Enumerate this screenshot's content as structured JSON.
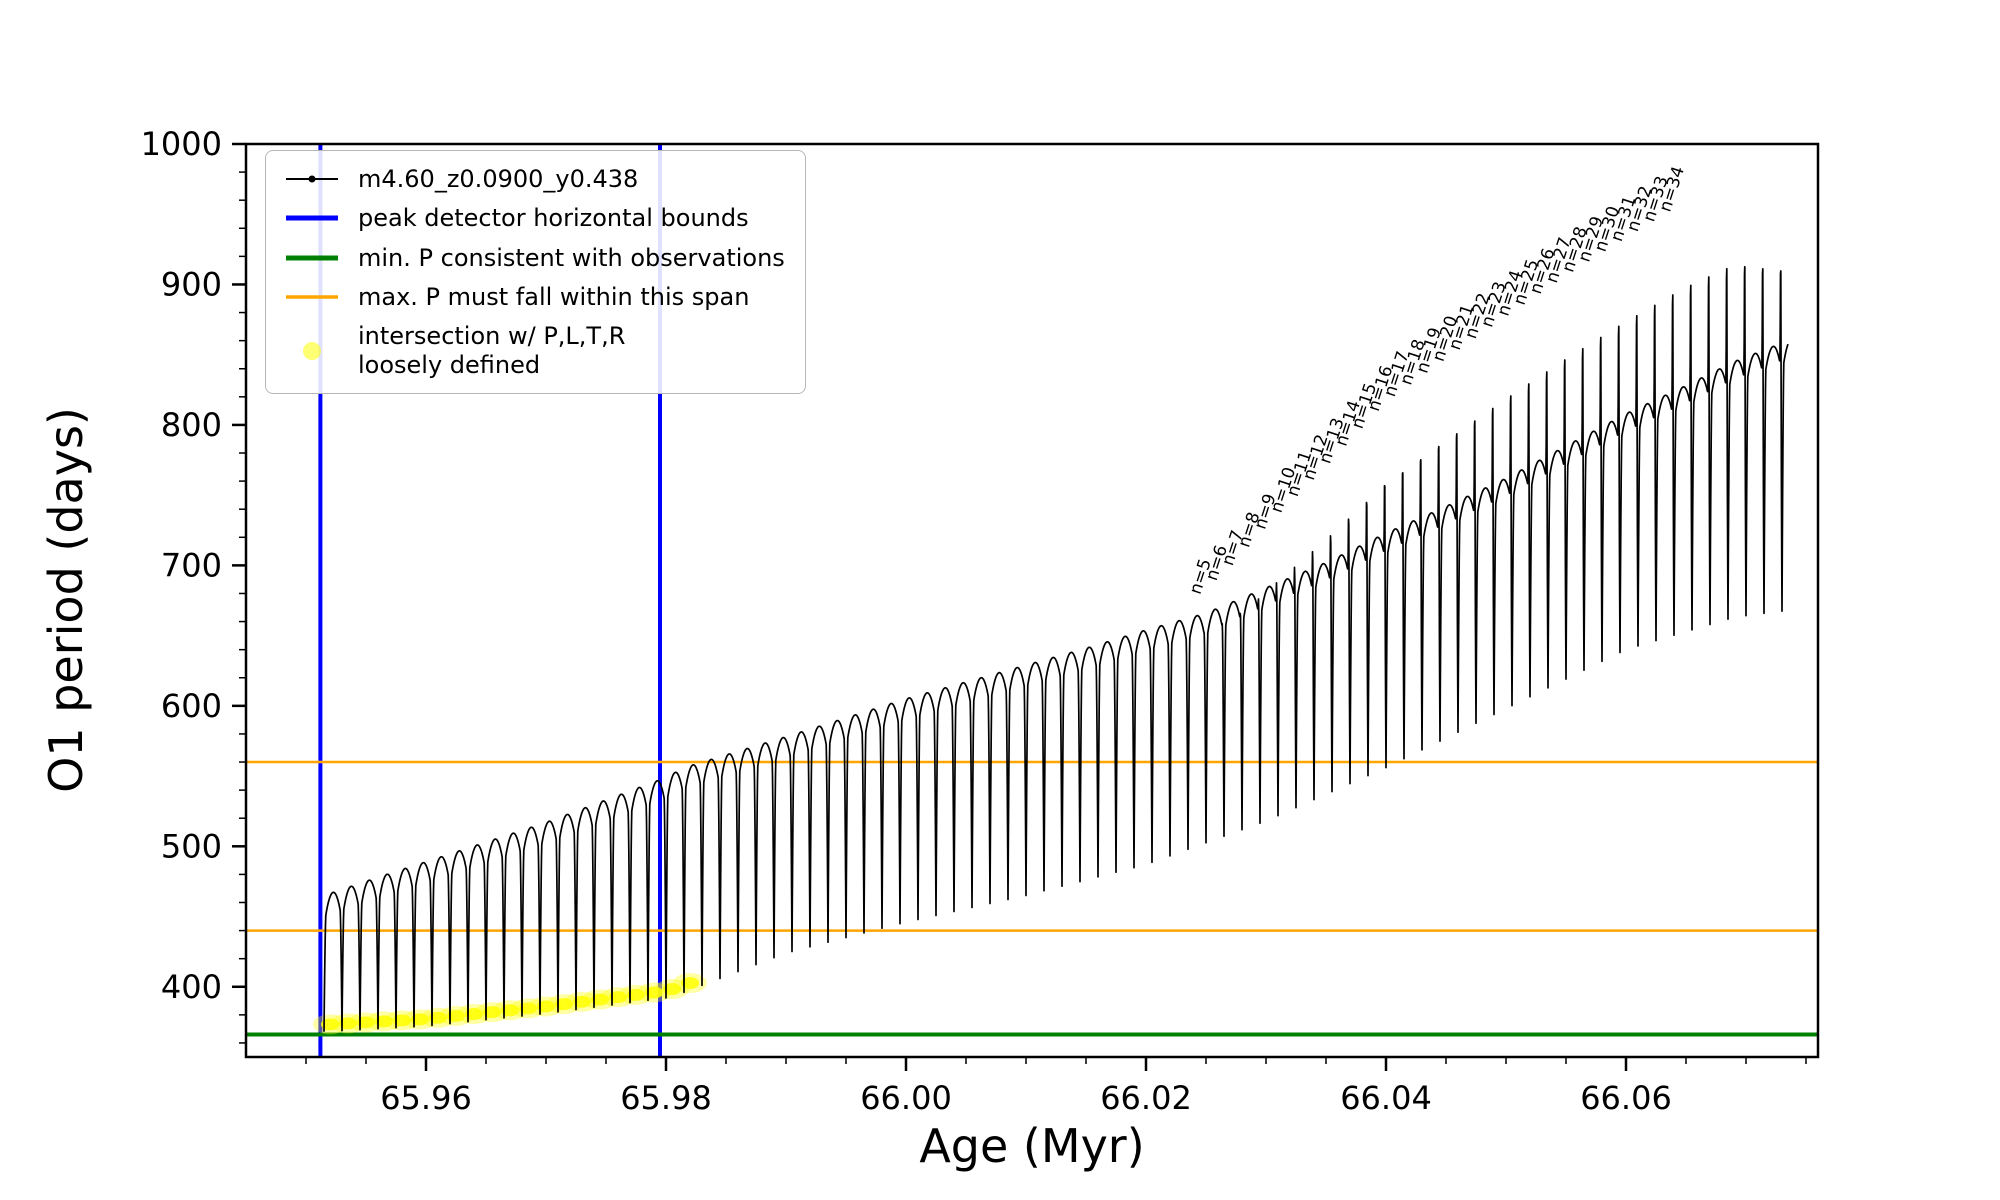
{
  "figure": {
    "background": "#ffffff"
  },
  "chart_data": {
    "type": "line",
    "title": "",
    "xlabel": "Age (Myr)",
    "ylabel": "O1 period (days)",
    "xlim": [
      65.945,
      66.076
    ],
    "ylim": [
      350,
      1000
    ],
    "xticks": [
      65.96,
      65.98,
      66.0,
      66.02,
      66.04,
      66.06
    ],
    "xtick_labels": [
      "65.96",
      "65.98",
      "66.00",
      "66.02",
      "66.04",
      "66.06"
    ],
    "yticks": [
      400,
      500,
      600,
      700,
      800,
      900,
      1000
    ],
    "ytick_labels": [
      "400",
      "500",
      "600",
      "700",
      "800",
      "900",
      "1000"
    ],
    "grid": false,
    "legend_position": "upper left",
    "series": [
      {
        "name": "m4.60_z0.0900_y0.438",
        "color": "#000000",
        "marker": "point",
        "model": {
          "period": 0.0015,
          "t_start": 65.9515,
          "t_end": 66.0735,
          "dome_amp": 26,
          "base_t": [
            65.9515,
            65.956,
            65.96,
            65.965,
            65.97,
            65.975,
            65.98,
            65.9815,
            65.99,
            66.0,
            66.005,
            66.01,
            66.015,
            66.02,
            66.025,
            66.03,
            66.035,
            66.04,
            66.045,
            66.05,
            66.055,
            66.06,
            66.065,
            66.069,
            66.0735
          ],
          "base_p": [
            465,
            478,
            489,
            503,
            517,
            533,
            549,
            556,
            578,
            605,
            617,
            629,
            641,
            654,
            666,
            684,
            702,
            723,
            742,
            762,
            785,
            808,
            828,
            845,
            860
          ],
          "dip_t": [
            65.9515,
            65.96,
            65.97,
            65.98,
            65.9815,
            65.99,
            66.0,
            66.01,
            66.02,
            66.03,
            66.04,
            66.05,
            66.06,
            66.069,
            66.0735
          ],
          "dip_p": [
            368,
            372,
            381,
            392,
            396,
            424,
            446,
            465,
            487,
            518,
            556,
            598,
            640,
            663,
            668
          ],
          "up_t": [
            65.945,
            66.024,
            66.027,
            66.03,
            66.035,
            66.04,
            66.045,
            66.05,
            66.055,
            66.06,
            66.065,
            66.069,
            66.0735
          ],
          "up_a": [
            0,
            0,
            12,
            30,
            55,
            80,
            92,
            102,
            108,
            112,
            118,
            118,
            100
          ]
        }
      }
    ],
    "vlines": {
      "label": "peak detector horizontal bounds",
      "color": "#0000ff",
      "x": [
        65.9512,
        65.9795
      ]
    },
    "hlines": {
      "green": {
        "label": "min. P consistent with observations",
        "color": "#008000",
        "y": 366
      },
      "orange": {
        "label": "max. P must fall within this span",
        "color": "#ffa500",
        "y": [
          560,
          440
        ]
      }
    },
    "scatter": {
      "label": "intersection w/ P,L,T,R loosely defined",
      "color": "#ffff00",
      "x_start": 65.952,
      "x_end": 65.982
    },
    "annotations": {
      "rotation_deg": -72,
      "x_start": 66.0245,
      "x_step": 0.00135,
      "labels": [
        "n=5",
        "n=6",
        "n=7",
        "n=8",
        "n=9",
        "n=10",
        "n=11",
        "n=12",
        "n=13",
        "n=14",
        "n=15",
        "n=16",
        "n=17",
        "n=18",
        "n=19",
        "n=20",
        "n=21",
        "n=22",
        "n=23",
        "n=24",
        "n=25",
        "n=26",
        "n=27",
        "n=28",
        "n=29",
        "n=30",
        "n=31",
        "n=32",
        "n=33",
        "n=34"
      ]
    }
  },
  "legend": {
    "entries": [
      {
        "label": "m4.60_z0.0900_y0.438",
        "type": "line-marker",
        "color": "#000000"
      },
      {
        "label": "peak detector horizontal bounds",
        "type": "line",
        "color": "#0000ff"
      },
      {
        "label": "min. P consistent with observations",
        "type": "line",
        "color": "#008000"
      },
      {
        "label": "max. P must fall within this span",
        "type": "line",
        "color": "#ffa500"
      },
      {
        "label": "intersection w/ P,L,T,R",
        "label2": "loosely defined",
        "type": "dot",
        "color": "#ffff00"
      }
    ]
  }
}
